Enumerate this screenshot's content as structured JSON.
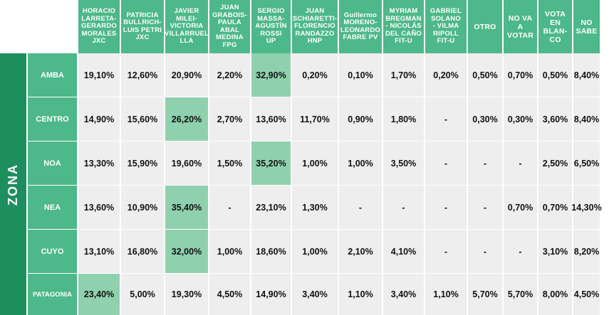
{
  "zone_title": "ZONA",
  "candidates": [
    "HORACIO\nLARRETA-\nGERARDO\nMORALES\nJXC",
    "PATRICIA\nBULLRICH-\nLUIS PETRI\nJXC",
    "JAVIER\nMILEI-\nVICTORIA\nVILLARRUEL\nLLA",
    "JUAN\nGRABOIS-\nPAULA\nABAL\nMEDINA\nFPG",
    "SERGIO\nMASSA-\nAGUSTÍN\nROSSI\nUP",
    "JUAN\nSCHIARETTI-\nFLORENCIO\nRANDAZZO\nHNP",
    "Guillermo\nMORENO-\nLEONARDO\nFABRE PV",
    "MYRIAM\nBREGMAN\n- NICOLÁS\nDEL CAÑO\nFIT-U",
    "GABRIEL\nSOLANO\n- VILMA\nRIPOLL\nFIT-U",
    "OTRO",
    "NO VA\nA\nVOTAR",
    "VOTA\nEN\nBLAN-\nCO",
    "NO\nSABE"
  ],
  "highlight_color": "#8fd1ae",
  "header_color": "#4db889",
  "zona_color": "#1d8f5c",
  "chart_data": {
    "type": "table",
    "rows": [
      {
        "zone": "AMBA",
        "values": [
          "19,10%",
          "12,60%",
          "20,90%",
          "2,20%",
          "32,90%",
          "0,20%",
          "0,10%",
          "1,70%",
          "0,20%",
          "0,50%",
          "0,70%",
          "0,50%",
          "8,40%"
        ],
        "highlight": 4
      },
      {
        "zone": "CENTRO",
        "values": [
          "14,90%",
          "15,60%",
          "26,20%",
          "2,70%",
          "13,60%",
          "11,70%",
          "0,90%",
          "1,80%",
          "-",
          "0,30%",
          "0,30%",
          "3,60%",
          "8,40%"
        ],
        "highlight": 2
      },
      {
        "zone": "NOA",
        "values": [
          "13,30%",
          "15,90%",
          "19,60%",
          "1,50%",
          "35,20%",
          "1,00%",
          "1,00%",
          "3,50%",
          "-",
          "-",
          "-",
          "2,50%",
          "6,50%"
        ],
        "highlight": 4
      },
      {
        "zone": "NEA",
        "values": [
          "13,60%",
          "10,90%",
          "35,40%",
          "-",
          "23,10%",
          "1,30%",
          "-",
          "-",
          "-",
          "-",
          "0,70%",
          "0,70%",
          "14,30%"
        ],
        "highlight": 2
      },
      {
        "zone": "CUYO",
        "values": [
          "13,10%",
          "16,80%",
          "32,00%",
          "1,00%",
          "18,60%",
          "1,00%",
          "2,10%",
          "4,10%",
          "-",
          "-",
          "-",
          "3,10%",
          "8,20%"
        ],
        "highlight": 2
      },
      {
        "zone": "PATAGONIA",
        "values": [
          "23,40%",
          "5,00%",
          "19,30%",
          "4,50%",
          "14,90%",
          "3,40%",
          "1,10%",
          "3,40%",
          "1,10%",
          "5,70%",
          "5,70%",
          "8,00%",
          "4,50%"
        ],
        "highlight": 0
      }
    ]
  }
}
